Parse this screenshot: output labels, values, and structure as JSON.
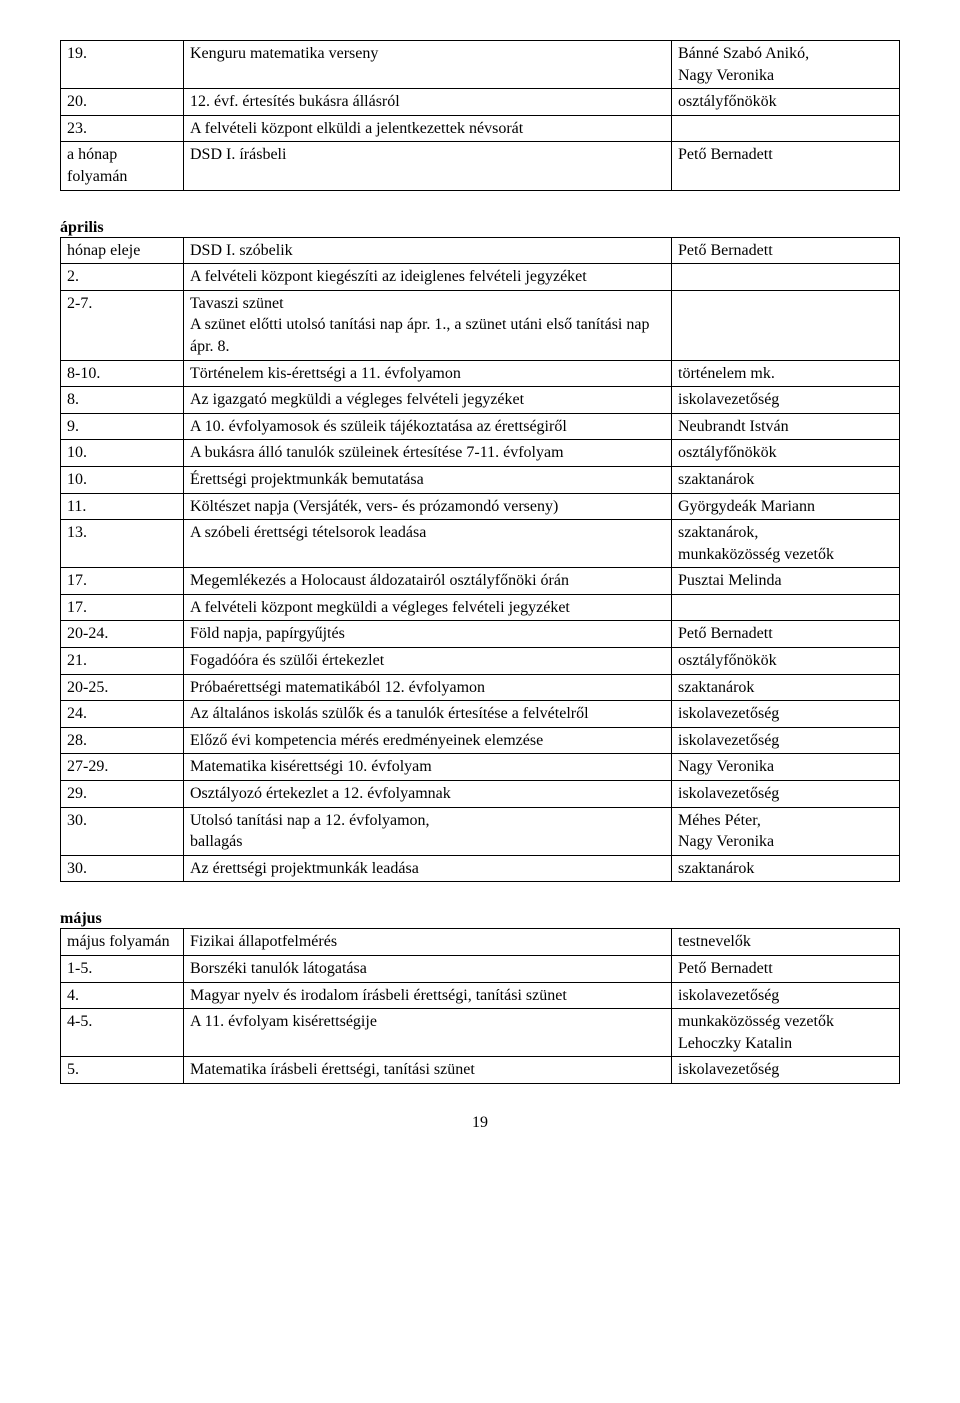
{
  "table1": {
    "rows": [
      {
        "a": "19.",
        "b": "Kenguru matematika verseny",
        "c": "Bánné Szabó Anikó,\nNagy Veronika"
      },
      {
        "a": "20.",
        "b": "12. évf. értesítés bukásra állásról",
        "c": "osztályfőnökök"
      },
      {
        "a": "23.",
        "b": "A felvételi központ elküldi a jelentkezettek névsorát",
        "c": ""
      },
      {
        "a": "a hónap folyamán",
        "b": "DSD I. írásbeli",
        "c": "Pető Bernadett"
      }
    ]
  },
  "section_april": "április",
  "table2": {
    "rows": [
      {
        "a": "hónap eleje",
        "b": "DSD I. szóbelik",
        "c": "Pető Bernadett"
      },
      {
        "a": "2.",
        "b": "A felvételi központ kiegészíti az ideiglenes felvételi jegyzéket",
        "c": ""
      },
      {
        "a": "2-7.",
        "b": "Tavaszi szünet\nA szünet előtti utolsó tanítási nap ápr. 1., a szünet utáni első tanítási nap ápr. 8.",
        "c": ""
      },
      {
        "a": "8-10.",
        "b": "Történelem kis-érettségi a 11. évfolyamon",
        "c": "történelem mk."
      },
      {
        "a": "8.",
        "b": "Az igazgató megküldi a végleges felvételi jegyzéket",
        "c": "iskolavezetőség"
      },
      {
        "a": "9.",
        "b": "A 10. évfolyamosok és szüleik tájékoztatása az érettségiről",
        "c": "Neubrandt István"
      },
      {
        "a": "10.",
        "b": "A bukásra álló tanulók szüleinek értesítése 7-11. évfolyam",
        "c": "osztályfőnökök"
      },
      {
        "a": "10.",
        "b": "Érettségi projektmunkák bemutatása",
        "c": "szaktanárok"
      },
      {
        "a": "11.",
        "b": "Költészet napja (Versjáték, vers- és prózamondó verseny)",
        "c": "Györgydeák Mariann"
      },
      {
        "a": "13.",
        "b": "A szóbeli érettségi tételsorok leadása",
        "c": "szaktanárok,\nmunkaközösség vezetők"
      },
      {
        "a": "17.",
        "b": "Megemlékezés a Holocaust áldozatairól osztályfőnöki órán",
        "c": "Pusztai Melinda"
      },
      {
        "a": "17.",
        "b": "A felvételi központ megküldi a végleges felvételi jegyzéket",
        "c": ""
      },
      {
        "a": "20-24.",
        "b": "Föld napja, papírgyűjtés",
        "c": "Pető Bernadett"
      },
      {
        "a": "21.",
        "b": "Fogadóóra és szülői értekezlet",
        "c": "osztályfőnökök"
      },
      {
        "a": "20-25.",
        "b": "Próbaérettségi matematikából 12. évfolyamon",
        "c": "szaktanárok"
      },
      {
        "a": "24.",
        "b": "Az általános iskolás szülők és a tanulók értesítése a felvételről",
        "c": "iskolavezetőség"
      },
      {
        "a": "28.",
        "b": "Előző évi kompetencia mérés eredményeinek elemzése",
        "c": "iskolavezetőség"
      },
      {
        "a": "27-29.",
        "b": "Matematika kisérettségi 10. évfolyam",
        "c": "Nagy Veronika"
      },
      {
        "a": "29.",
        "b": "Osztályozó értekezlet a 12. évfolyamnak",
        "c": "iskolavezetőség"
      },
      {
        "a": "30.",
        "b": "Utolsó tanítási nap a 12. évfolyamon,\nballagás",
        "c": "Méhes Péter,\nNagy Veronika"
      },
      {
        "a": "30.",
        "b": "Az érettségi projektmunkák leadása",
        "c": "szaktanárok"
      }
    ]
  },
  "section_may": "május",
  "table3": {
    "rows": [
      {
        "a": "május folyamán",
        "b": "Fizikai állapotfelmérés",
        "c": "testnevelők"
      },
      {
        "a": "1-5.",
        "b": "Borszéki tanulók látogatása",
        "c": "Pető Bernadett"
      },
      {
        "a": "4.",
        "b": "Magyar nyelv és irodalom írásbeli érettségi, tanítási szünet",
        "c": "iskolavezetőség"
      },
      {
        "a": "4-5.",
        "b": "A 11. évfolyam kisérettségije",
        "c": "munkaközösség vezetők\nLehoczky Katalin"
      },
      {
        "a": "5.",
        "b": "Matematika írásbeli érettségi, tanítási szünet",
        "c": "iskolavezetőség"
      }
    ]
  },
  "page_number": "19"
}
